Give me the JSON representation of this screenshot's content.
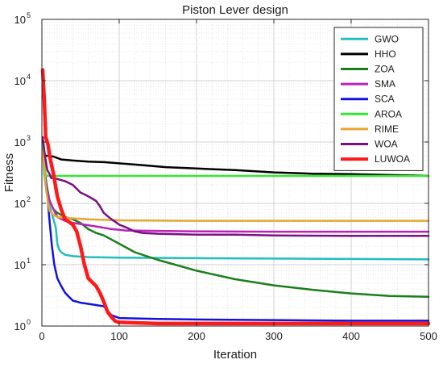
{
  "chart_data": {
    "type": "line",
    "title": "Piston Lever design",
    "xlabel": "Iteration",
    "ylabel": "Fitness",
    "xlim": [
      0,
      500
    ],
    "ylim": [
      1,
      100000
    ],
    "yscale": "log",
    "grid": true,
    "legend_position": "top-right",
    "x_ticks": [
      "0",
      "100",
      "200",
      "300",
      "400",
      "500"
    ],
    "y_ticks": [
      {
        "base": "10",
        "exp": "0"
      },
      {
        "base": "10",
        "exp": "1"
      },
      {
        "base": "10",
        "exp": "2"
      },
      {
        "base": "10",
        "exp": "3"
      },
      {
        "base": "10",
        "exp": "4"
      },
      {
        "base": "10",
        "exp": "5"
      }
    ],
    "series": [
      {
        "name": "GWO",
        "color": "#22BDBD",
        "width": 2.5,
        "points": [
          [
            1,
            900
          ],
          [
            3,
            300
          ],
          [
            6,
            150
          ],
          [
            10,
            90
          ],
          [
            15,
            55
          ],
          [
            18,
            40
          ],
          [
            20,
            22
          ],
          [
            22,
            18
          ],
          [
            25,
            16
          ],
          [
            30,
            14.5
          ],
          [
            40,
            13.8
          ],
          [
            60,
            13.3
          ],
          [
            100,
            13
          ],
          [
            200,
            12.8
          ],
          [
            300,
            12.6
          ],
          [
            400,
            12.4
          ],
          [
            500,
            12.2
          ]
        ]
      },
      {
        "name": "HHO",
        "color": "#000000",
        "width": 2.5,
        "points": [
          [
            1,
            650
          ],
          [
            5,
            600
          ],
          [
            15,
            580
          ],
          [
            25,
            520
          ],
          [
            40,
            500
          ],
          [
            60,
            480
          ],
          [
            80,
            470
          ],
          [
            100,
            450
          ],
          [
            130,
            420
          ],
          [
            160,
            390
          ],
          [
            200,
            370
          ],
          [
            250,
            350
          ],
          [
            300,
            320
          ],
          [
            350,
            305
          ],
          [
            400,
            300
          ],
          [
            450,
            290
          ],
          [
            480,
            285
          ],
          [
            500,
            280
          ]
        ]
      },
      {
        "name": "ZOA",
        "color": "#1A7F1A",
        "width": 2.5,
        "points": [
          [
            1,
            1200
          ],
          [
            3,
            400
          ],
          [
            6,
            200
          ],
          [
            10,
            110
          ],
          [
            15,
            80
          ],
          [
            20,
            70
          ],
          [
            30,
            60
          ],
          [
            40,
            55
          ],
          [
            50,
            48
          ],
          [
            60,
            38
          ],
          [
            70,
            33
          ],
          [
            80,
            30
          ],
          [
            100,
            22
          ],
          [
            120,
            16
          ],
          [
            150,
            12
          ],
          [
            200,
            8
          ],
          [
            250,
            5.8
          ],
          [
            300,
            4.6
          ],
          [
            350,
            3.9
          ],
          [
            400,
            3.4
          ],
          [
            450,
            3.1
          ],
          [
            500,
            3.0
          ]
        ]
      },
      {
        "name": "SMA",
        "color": "#BB22BB",
        "width": 2.5,
        "points": [
          [
            1,
            1000
          ],
          [
            3,
            400
          ],
          [
            6,
            180
          ],
          [
            10,
            110
          ],
          [
            15,
            80
          ],
          [
            20,
            60
          ],
          [
            30,
            52
          ],
          [
            40,
            48
          ],
          [
            50,
            46
          ],
          [
            60,
            44
          ],
          [
            70,
            42
          ],
          [
            80,
            40
          ],
          [
            90,
            38
          ],
          [
            100,
            37
          ],
          [
            110,
            36
          ],
          [
            120,
            36
          ],
          [
            200,
            35
          ],
          [
            300,
            34.5
          ],
          [
            400,
            34.5
          ],
          [
            500,
            34.5
          ]
        ]
      },
      {
        "name": "SCA",
        "color": "#1212E0",
        "width": 2.5,
        "points": [
          [
            1,
            800
          ],
          [
            3,
            500
          ],
          [
            5,
            250
          ],
          [
            8,
            100
          ],
          [
            10,
            50
          ],
          [
            13,
            20
          ],
          [
            16,
            10
          ],
          [
            20,
            6
          ],
          [
            25,
            4.5
          ],
          [
            30,
            3.5
          ],
          [
            35,
            3
          ],
          [
            40,
            2.6
          ],
          [
            50,
            2.4
          ],
          [
            60,
            2.3
          ],
          [
            70,
            2.2
          ],
          [
            80,
            2.1
          ],
          [
            90,
            1.5
          ],
          [
            100,
            1.35
          ],
          [
            150,
            1.3
          ],
          [
            200,
            1.28
          ],
          [
            300,
            1.25
          ],
          [
            400,
            1.22
          ],
          [
            500,
            1.22
          ]
        ]
      },
      {
        "name": "AROA",
        "color": "#33E833",
        "width": 2.5,
        "points": [
          [
            1,
            1000
          ],
          [
            2,
            600
          ],
          [
            3,
            450
          ],
          [
            4,
            350
          ],
          [
            5,
            300
          ],
          [
            6,
            280
          ],
          [
            8,
            280
          ],
          [
            100,
            280
          ],
          [
            200,
            280
          ],
          [
            300,
            280
          ],
          [
            400,
            280
          ],
          [
            500,
            280
          ]
        ]
      },
      {
        "name": "RIME",
        "color": "#E8A530",
        "width": 2.5,
        "points": [
          [
            1,
            700
          ],
          [
            3,
            400
          ],
          [
            5,
            200
          ],
          [
            8,
            100
          ],
          [
            10,
            75
          ],
          [
            15,
            65
          ],
          [
            20,
            60
          ],
          [
            30,
            58
          ],
          [
            40,
            57
          ],
          [
            50,
            56
          ],
          [
            60,
            55
          ],
          [
            100,
            53
          ],
          [
            200,
            52
          ],
          [
            300,
            52
          ],
          [
            400,
            52
          ],
          [
            500,
            52
          ]
        ]
      },
      {
        "name": "WOA",
        "color": "#7B1080",
        "width": 2.5,
        "points": [
          [
            1,
            1200
          ],
          [
            4,
            600
          ],
          [
            7,
            350
          ],
          [
            10,
            300
          ],
          [
            12,
            260
          ],
          [
            20,
            250
          ],
          [
            30,
            230
          ],
          [
            40,
            200
          ],
          [
            50,
            150
          ],
          [
            55,
            140
          ],
          [
            60,
            130
          ],
          [
            65,
            120
          ],
          [
            70,
            110
          ],
          [
            75,
            90
          ],
          [
            80,
            70
          ],
          [
            85,
            62
          ],
          [
            90,
            55
          ],
          [
            95,
            50
          ],
          [
            100,
            45
          ],
          [
            110,
            40
          ],
          [
            120,
            35
          ],
          [
            130,
            33
          ],
          [
            150,
            32
          ],
          [
            200,
            31
          ],
          [
            250,
            31
          ],
          [
            300,
            30
          ],
          [
            400,
            29.5
          ],
          [
            500,
            29.5
          ]
        ]
      },
      {
        "name": "LUWOA",
        "color": "#FF1A1A",
        "width": 4.5,
        "points": [
          [
            1,
            15000
          ],
          [
            2,
            9000
          ],
          [
            3,
            5000
          ],
          [
            5,
            1200
          ],
          [
            8,
            900
          ],
          [
            10,
            600
          ],
          [
            15,
            300
          ],
          [
            20,
            130
          ],
          [
            25,
            80
          ],
          [
            30,
            55
          ],
          [
            35,
            50
          ],
          [
            40,
            45
          ],
          [
            45,
            35
          ],
          [
            50,
            20
          ],
          [
            55,
            10
          ],
          [
            60,
            6
          ],
          [
            70,
            4.5
          ],
          [
            75,
            3.5
          ],
          [
            80,
            2.5
          ],
          [
            85,
            1.7
          ],
          [
            90,
            1.4
          ],
          [
            95,
            1.2
          ],
          [
            100,
            1.15
          ],
          [
            150,
            1.1
          ],
          [
            200,
            1.1
          ],
          [
            300,
            1.1
          ],
          [
            400,
            1.1
          ],
          [
            500,
            1.1
          ]
        ]
      }
    ]
  }
}
